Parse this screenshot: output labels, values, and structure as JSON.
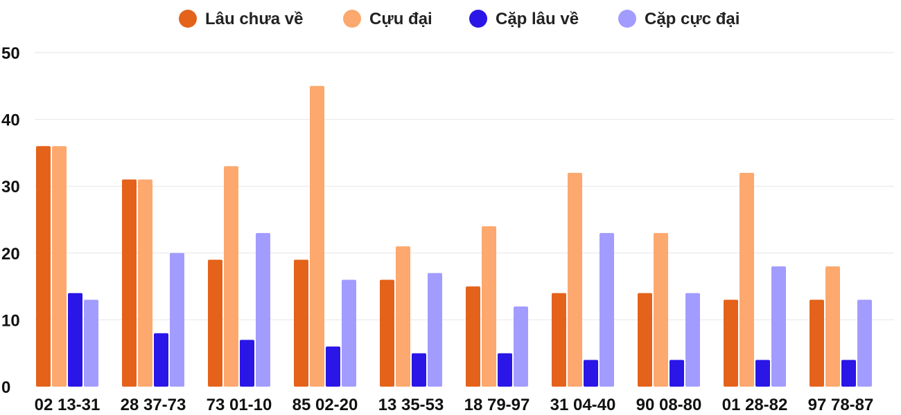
{
  "chart_data": {
    "type": "bar",
    "title": "",
    "xlabel": "",
    "ylabel": "",
    "ylim": [
      0,
      50
    ],
    "yticks": [
      0,
      10,
      20,
      30,
      40,
      50
    ],
    "grid": true,
    "legend_position": "top",
    "categories": [
      "02 13-31",
      "28 37-73",
      "73 01-10",
      "85 02-20",
      "13 35-53",
      "18 79-97",
      "31 04-40",
      "90 08-80",
      "01 28-82",
      "97 78-87"
    ],
    "series": [
      {
        "name": "Lâu chưa về",
        "color": "#e4621a",
        "values": [
          36,
          31,
          19,
          19,
          16,
          15,
          14,
          14,
          13,
          13
        ]
      },
      {
        "name": "Cựu đại",
        "color": "#fca86e",
        "values": [
          36,
          31,
          33,
          45,
          21,
          24,
          32,
          23,
          32,
          18
        ]
      },
      {
        "name": "Cặp lâu về",
        "color": "#2a16e6",
        "values": [
          14,
          8,
          7,
          6,
          5,
          5,
          4,
          4,
          4,
          4
        ]
      },
      {
        "name": "Cặp cực đại",
        "color": "#a29cff",
        "values": [
          13,
          20,
          23,
          16,
          17,
          12,
          23,
          14,
          18,
          13
        ]
      }
    ]
  }
}
